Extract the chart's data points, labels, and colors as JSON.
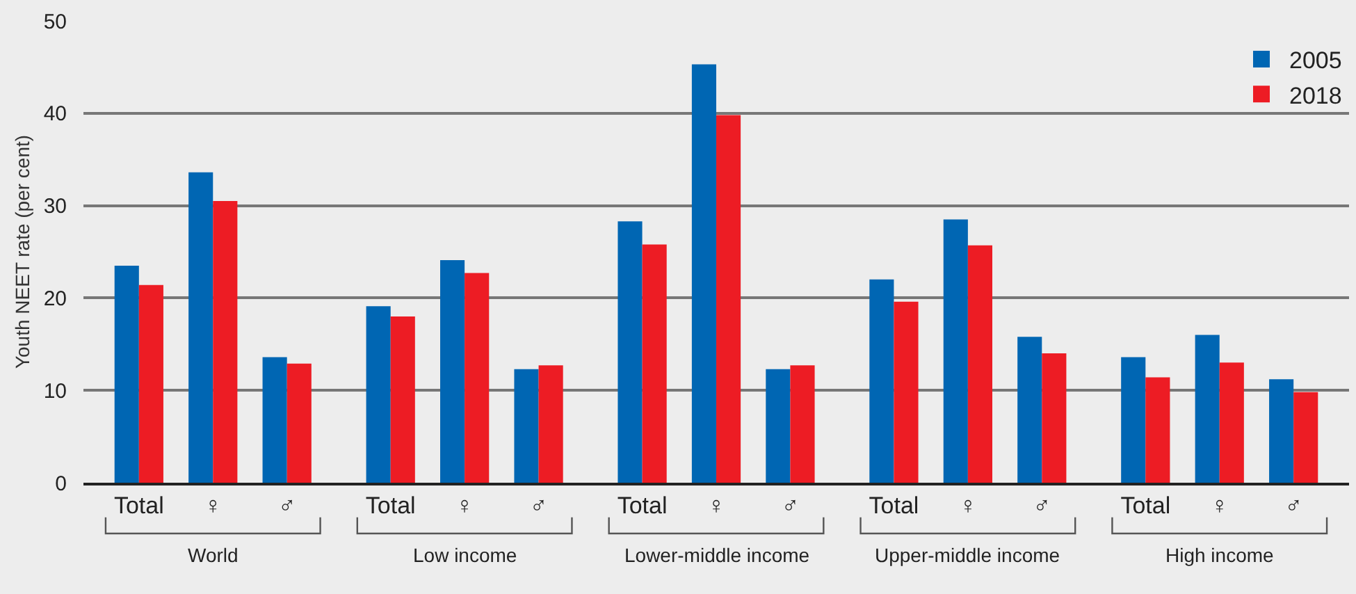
{
  "chart_data": {
    "type": "bar",
    "ylabel": "Youth NEET rate (per cent)",
    "categories": [
      "Total",
      "♀",
      "♂",
      "Total",
      "♀",
      "♂",
      "Total",
      "♀",
      "♂",
      "Total",
      "♀",
      "♂",
      "Total",
      "♀",
      "♂"
    ],
    "series": [
      {
        "name": "2005",
        "color": "#0066b3",
        "values": [
          23.5,
          33.6,
          13.6,
          19.1,
          24.1,
          12.3,
          28.3,
          45.3,
          12.3,
          22.0,
          28.5,
          15.8,
          13.6,
          16.0,
          11.2
        ]
      },
      {
        "name": "2018",
        "color": "#ed1c24",
        "values": [
          21.4,
          30.5,
          12.9,
          18.0,
          22.7,
          12.7,
          25.8,
          39.8,
          12.7,
          19.6,
          25.7,
          14.0,
          11.4,
          13.0,
          9.8
        ]
      }
    ],
    "annotations": [
      "World",
      "Low income",
      "Lower-middle income",
      "Upper-middle income",
      "High income"
    ],
    "ylim": [
      0,
      50
    ],
    "yticks": [
      0,
      10,
      20,
      30,
      40,
      50
    ],
    "grid": "y",
    "legend": "top right"
  }
}
